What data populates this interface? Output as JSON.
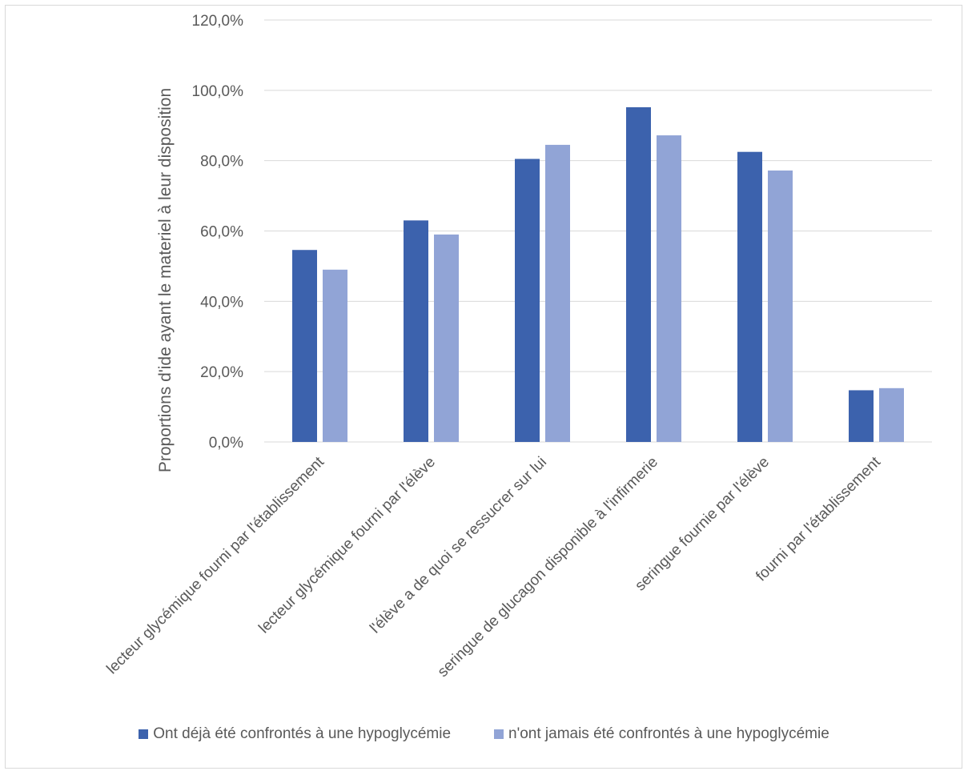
{
  "chart_data": {
    "type": "bar",
    "title": "",
    "xlabel": "",
    "ylabel": "Proportions d'ide ayant le materiel à leur disposition",
    "ylim": [
      0,
      120
    ],
    "yticks": [
      "0,0%",
      "20,0%",
      "40,0%",
      "60,0%",
      "80,0%",
      "100,0%",
      "120,0%"
    ],
    "grid": true,
    "legend_position": "bottom",
    "categories": [
      "lecteur glycémique fourni par l'établissement",
      "lecteur glycémique fourni par l'élève",
      "l'élève a de quoi se ressucrer sur lui",
      "seringue de glucagon disponible à l'infirmerie",
      "seringue fournie par l'élève",
      "fourni par l'établissement"
    ],
    "series": [
      {
        "name": "Ont déjà été confrontés à une hypoglycémie",
        "color": "#3c62ad",
        "values": [
          54.6,
          63.0,
          80.5,
          95.2,
          82.5,
          14.7
        ]
      },
      {
        "name": "n'ont jamais été confrontés à une hypoglycémie",
        "color": "#91a4d6",
        "values": [
          49.0,
          59.0,
          84.5,
          87.2,
          77.2,
          15.3
        ]
      }
    ]
  }
}
